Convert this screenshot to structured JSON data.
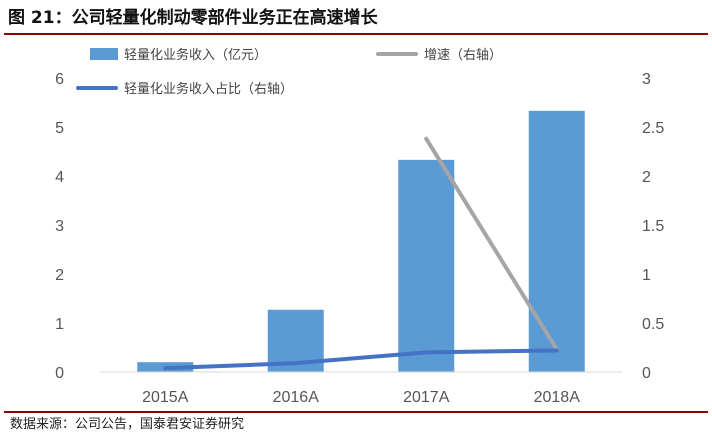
{
  "title": "图 21：公司轻量化制动零部件业务正在高速增长",
  "source": "数据来源：公司公告，国泰君安证券研究",
  "chart_data": {
    "type": "bar",
    "categories": [
      "2015A",
      "2016A",
      "2017A",
      "2018A"
    ],
    "series": [
      {
        "name": "轻量化业务收入（亿元）",
        "kind": "bar",
        "axis": "left",
        "values": [
          0.2,
          1.27,
          4.33,
          5.33
        ],
        "color": "#5b9bd5"
      },
      {
        "name": "增速（右轴）",
        "kind": "line",
        "axis": "right",
        "values": [
          null,
          null,
          2.38,
          0.23
        ],
        "color": "#a5a5a5"
      },
      {
        "name": "轻量化业务收入占比（右轴）",
        "kind": "line",
        "axis": "right",
        "values": [
          0.04,
          0.09,
          0.2,
          0.22
        ],
        "color": "#4472c4"
      }
    ],
    "y_left": {
      "range": [
        0,
        6
      ],
      "ticks": [
        "0",
        "1",
        "2",
        "3",
        "4",
        "5",
        "6"
      ]
    },
    "y_right": {
      "range": [
        0,
        3
      ],
      "ticks": [
        "0",
        "0.5",
        "1",
        "1.5",
        "2",
        "2.5",
        "3"
      ]
    },
    "grid": false,
    "legend": "top"
  }
}
